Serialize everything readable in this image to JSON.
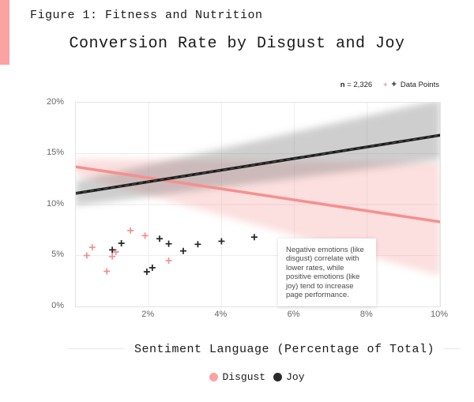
{
  "page": {
    "figure_label": "Figure 1: Fitness and Nutrition",
    "title": "Conversion Rate by Disgust and Joy",
    "accent_color": "#FBA2A2"
  },
  "top_legend": {
    "n_symbol": "n",
    "n_rest": "= 2,326",
    "pink_plus": "+",
    "black_plus": "+",
    "data_points_label": "Data Points"
  },
  "chart_data": {
    "type": "scatter",
    "title": "Conversion Rate by Disgust and Joy",
    "xlabel": "Sentiment Language (Percentage of Total)",
    "ylabel": "",
    "xlim": [
      0,
      10
    ],
    "ylim": [
      0,
      20
    ],
    "grid": true,
    "x_ticks": [
      {
        "value": 2,
        "label": "2%"
      },
      {
        "value": 4,
        "label": "4%"
      },
      {
        "value": 6,
        "label": "6%"
      },
      {
        "value": 8,
        "label": "8%"
      },
      {
        "value": 10,
        "label": "10%"
      }
    ],
    "y_ticks": [
      {
        "value": 0,
        "label": "0%"
      },
      {
        "value": 5,
        "label": "5%"
      },
      {
        "value": 10,
        "label": "10%"
      },
      {
        "value": 15,
        "label": "15%"
      },
      {
        "value": 20,
        "label": "20%"
      }
    ],
    "annotation": "Negative emotions (like disgust) correlate with lower rates, while positive emotions (like joy) tend to increase page performance.",
    "series": [
      {
        "name": "Disgust",
        "color": "#F5908F",
        "marker_color": "#F58E8E",
        "band_color": "rgba(246,150,150,0.30)",
        "trend": {
          "x": [
            0,
            10
          ],
          "y": [
            13.7,
            8.3
          ]
        },
        "band": {
          "x": [
            0,
            10
          ],
          "upper": [
            14.5,
            14.1
          ],
          "lower": [
            12.9,
            3.0
          ]
        },
        "points": [
          [
            0.3,
            5.0
          ],
          [
            0.45,
            5.8
          ],
          [
            0.85,
            3.45
          ],
          [
            1.0,
            4.9
          ],
          [
            1.1,
            5.35
          ],
          [
            1.5,
            7.45
          ],
          [
            1.9,
            6.95
          ],
          [
            2.55,
            4.5
          ]
        ]
      },
      {
        "name": "Joy",
        "color": "#1B1B1B",
        "marker_color": "#222222",
        "band_color": "rgba(110,110,110,0.34)",
        "trend": {
          "x": [
            0,
            10
          ],
          "y": [
            11.1,
            16.8
          ]
        },
        "band": {
          "x": [
            0,
            10
          ],
          "upper": [
            12.3,
            20.3
          ],
          "lower": [
            9.9,
            14.4
          ]
        },
        "points": [
          [
            1.0,
            5.55
          ],
          [
            1.25,
            6.2
          ],
          [
            1.95,
            3.4
          ],
          [
            2.1,
            3.8
          ],
          [
            2.3,
            6.65
          ],
          [
            2.55,
            6.15
          ],
          [
            2.95,
            5.45
          ],
          [
            3.35,
            6.1
          ],
          [
            4.0,
            6.4
          ],
          [
            4.9,
            6.8
          ]
        ]
      }
    ],
    "legend": [
      {
        "label": "Disgust",
        "color": "#FBA3A3"
      },
      {
        "label": "Joy",
        "color": "#2A2A2A"
      }
    ],
    "sample_size": "n = 2,326"
  }
}
